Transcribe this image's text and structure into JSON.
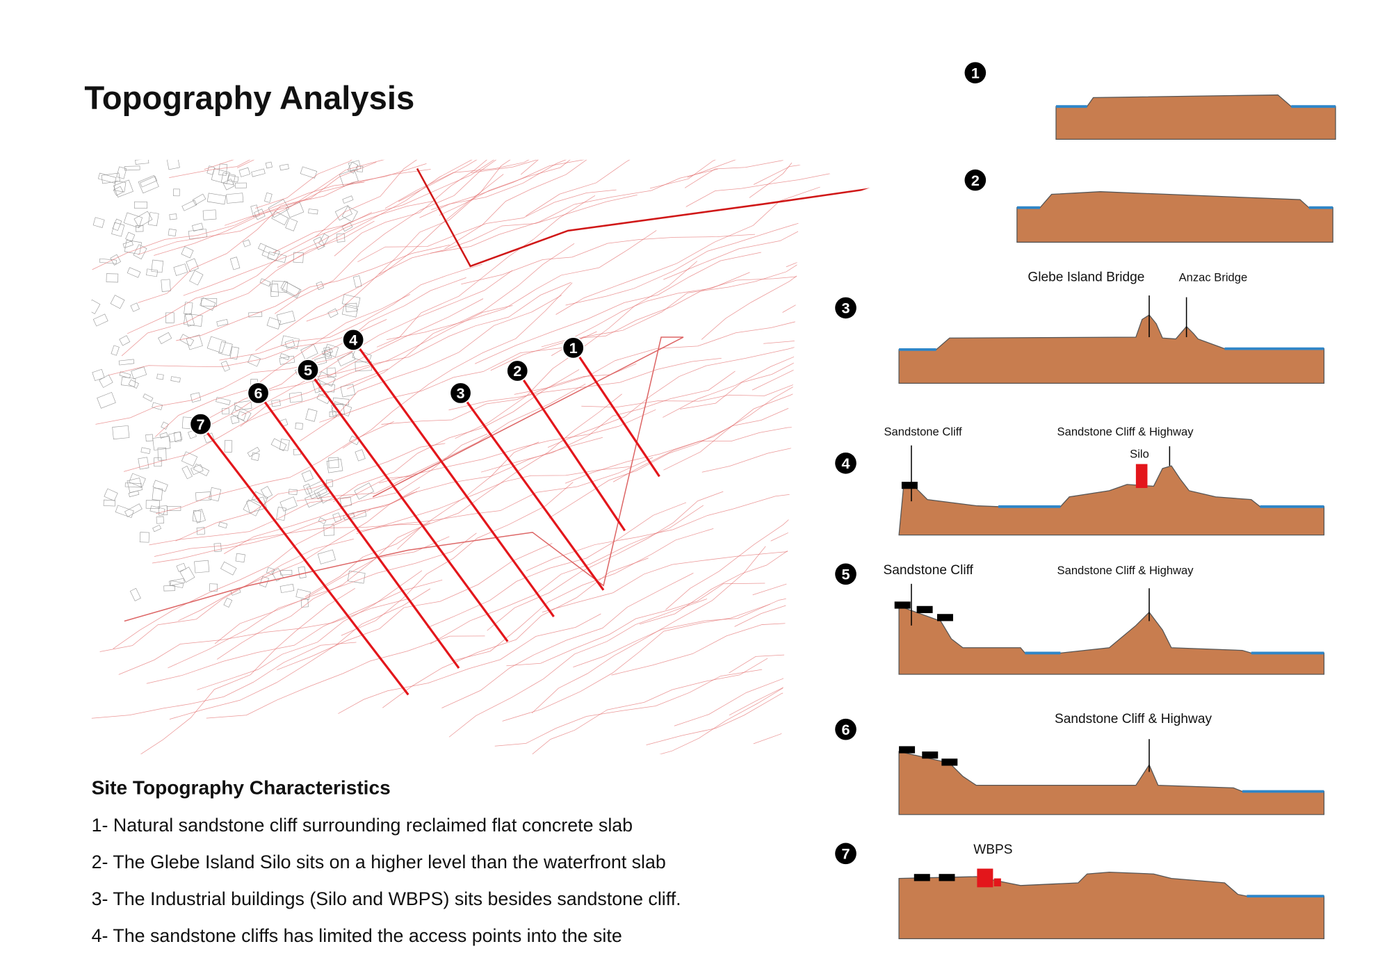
{
  "title": "Topography Analysis",
  "map": {
    "markers": [
      "1",
      "2",
      "3",
      "4",
      "5",
      "6",
      "7"
    ]
  },
  "sections": [
    {
      "number": "1",
      "labels": []
    },
    {
      "number": "2",
      "labels": []
    },
    {
      "number": "3",
      "labels": [
        "Glebe Island Bridge",
        "Anzac Bridge"
      ]
    },
    {
      "number": "4",
      "labels": [
        "Sandstone Cliff",
        "Sandstone Cliff & Highway",
        "Silo"
      ]
    },
    {
      "number": "5",
      "labels": [
        "Sandstone Cliff",
        "Sandstone Cliff & Highway"
      ]
    },
    {
      "number": "6",
      "labels": [
        "Sandstone Cliff & Highway"
      ]
    },
    {
      "number": "7",
      "labels": [
        "WBPS"
      ]
    }
  ],
  "characteristics": {
    "heading": "Site Topography Characteristics",
    "items": [
      "1- Natural sandstone cliff surrounding reclaimed flat concrete slab",
      "2- The Glebe Island Silo sits on a higher level than the waterfront slab",
      "3- The Industrial buildings (Silo and WBPS) sits besides sandstone cliff.",
      "4- The sandstone cliffs has limited the access points into the site"
    ]
  }
}
